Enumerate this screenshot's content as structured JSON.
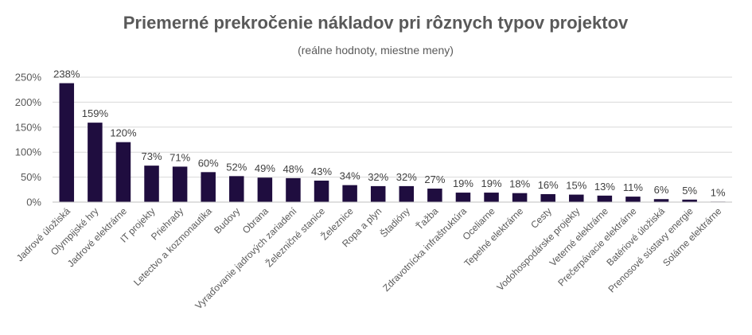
{
  "chart_data": {
    "type": "bar",
    "title": "Priemerné prekročenie nákladov pri rôznych typov projektov",
    "subtitle": "(reálne hodnoty, miestne meny)",
    "xlabel": "",
    "ylabel": "",
    "ylim": [
      0,
      250
    ],
    "yticks": [
      0,
      50,
      100,
      150,
      200,
      250
    ],
    "ytick_suffix": "%",
    "grid": true,
    "bar_color": "#1f0d3f",
    "categories": [
      "Jadrové úložiská",
      "Olympijské hry",
      "Jadrové elektrárne",
      "IT projekty",
      "Priehrady",
      "Letectvo a kozmonautika",
      "Budovy",
      "Obrana",
      "Vyraďovanie jadrových zariadení",
      "Železničné stanice",
      "Železnice",
      "Ropa a plyn",
      "Štadióny",
      "Ťažba",
      "Zdravotnícka infraštruktúra",
      "Oceliarne",
      "Tepelné elektrárne",
      "Cesty",
      "Vodohospodárske projekty",
      "Veterné elektrárne",
      "Prečerpávacie elektrárne",
      "Batériové úložiská",
      "Prenosové sústavy energie",
      "Solárne elektrárne"
    ],
    "values": [
      238,
      159,
      120,
      73,
      71,
      60,
      52,
      49,
      48,
      43,
      34,
      32,
      32,
      27,
      19,
      19,
      18,
      16,
      15,
      13,
      11,
      6,
      5,
      1
    ],
    "data_labels": [
      "238%",
      "159%",
      "120%",
      "73%",
      "71%",
      "60%",
      "52%",
      "49%",
      "48%",
      "43%",
      "34%",
      "32%",
      "32%",
      "27%",
      "19%",
      "19%",
      "18%",
      "16%",
      "15%",
      "13%",
      "11%",
      "6%",
      "5%",
      "1%"
    ]
  }
}
